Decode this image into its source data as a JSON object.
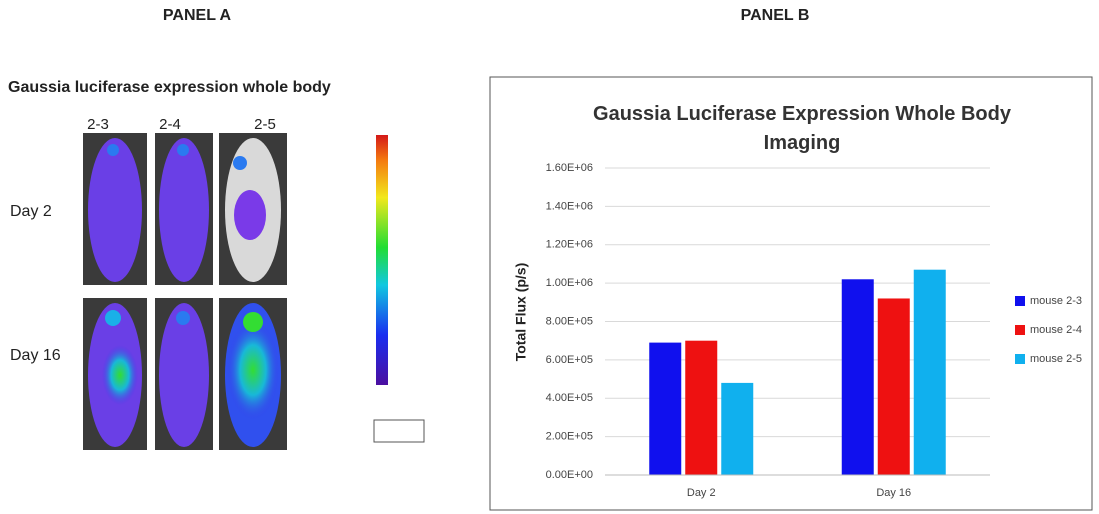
{
  "panels": {
    "a": "PANEL A",
    "b": "PANEL B"
  },
  "image_panel": {
    "title": "Gaussia luciferase expression whole body",
    "columns": [
      "2-3",
      "2-4",
      "2-5"
    ],
    "rows": [
      "Day 2",
      "Day 16"
    ]
  },
  "chart_data": {
    "type": "bar",
    "title": "Gaussia Luciferase Expression Whole Body Imaging",
    "y_label": "Total Flux (p/s)",
    "categories": [
      "Day 2",
      "Day 16"
    ],
    "series": [
      {
        "name": "mouse 2-3",
        "color": "#1010ee",
        "values": [
          690000,
          1020000
        ]
      },
      {
        "name": "mouse 2-4",
        "color": "#ee1111",
        "values": [
          700000,
          920000
        ]
      },
      {
        "name": "mouse 2-5",
        "color": "#10b0ee",
        "values": [
          480000,
          1070000
        ]
      }
    ],
    "ylim": [
      0,
      1600000
    ],
    "yticks": [
      {
        "value": 0,
        "label": "0.00E+00"
      },
      {
        "value": 200000,
        "label": "2.00E+05"
      },
      {
        "value": 400000,
        "label": "4.00E+05"
      },
      {
        "value": 600000,
        "label": "6.00E+05"
      },
      {
        "value": 800000,
        "label": "8.00E+05"
      },
      {
        "value": 1000000,
        "label": "1.00E+06"
      },
      {
        "value": 1200000,
        "label": "1.20E+06"
      },
      {
        "value": 1400000,
        "label": "1.40E+06"
      },
      {
        "value": 1600000,
        "label": "1.60E+06"
      }
    ],
    "grid": true,
    "legend": "right"
  }
}
